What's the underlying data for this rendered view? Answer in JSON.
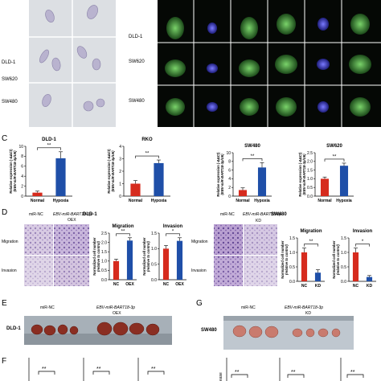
{
  "panel_a": {
    "rows": [
      "DLD-1",
      "SW620",
      "SW480"
    ]
  },
  "panel_b": {
    "rows": [
      "DLD-1",
      "SW620",
      "SW480"
    ]
  },
  "panel_c": {
    "letter": "C",
    "ylabel_line1": "Relative expression (-ΔΔCt)",
    "ylabel_line2": "(EBV-miR-BART18-3p/U6)",
    "sig": "**",
    "charts": [
      {
        "title": "DLD-1",
        "categories": [
          "Normal",
          "Hypoxia"
        ],
        "values": [
          0.7,
          7.6
        ],
        "errors": [
          0.3,
          1.3
        ],
        "ylim": [
          0,
          10
        ],
        "ticks": [
          0,
          2,
          4,
          6,
          8,
          10
        ],
        "colors": [
          "#d62b1e",
          "#1f4fa8"
        ]
      },
      {
        "title": "RKO",
        "categories": [
          "Normal",
          "Hypoxia"
        ],
        "values": [
          1.0,
          2.65
        ],
        "errors": [
          0.25,
          0.25
        ],
        "ylim": [
          0,
          4
        ],
        "ticks": [
          0,
          1,
          2,
          3,
          4
        ],
        "colors": [
          "#d62b1e",
          "#1f4fa8"
        ]
      },
      {
        "title": "SW480",
        "categories": [
          "Normal",
          "Hypoxia"
        ],
        "values": [
          1.4,
          6.6
        ],
        "errors": [
          0.5,
          1.1
        ],
        "ylim": [
          0,
          10
        ],
        "ticks": [
          0,
          2,
          4,
          6,
          8,
          10
        ],
        "colors": [
          "#d62b1e",
          "#1f4fa8"
        ]
      },
      {
        "title": "SW620",
        "categories": [
          "Normal",
          "Hypoxia"
        ],
        "values": [
          1.0,
          1.75
        ],
        "errors": [
          0.1,
          0.15
        ],
        "ylim": [
          0,
          2.5
        ],
        "ticks": [
          0.0,
          0.5,
          1.0,
          1.5,
          2.0,
          2.5
        ],
        "colors": [
          "#d62b1e",
          "#1f4fa8"
        ]
      }
    ]
  },
  "panel_d": {
    "letter": "D",
    "left": {
      "cell_line": "DLD-1",
      "col1": "miR-NC",
      "col2_line1": "EBV-miR-BART18-3p",
      "col2_line2": "OEX",
      "row1": "Migration",
      "row2": "Invasion"
    },
    "right": {
      "cell_line": "SW480",
      "col1": "miR-NC",
      "col2_line1": "EBV-miR-BART18-3p",
      "col2_line2": "KD",
      "row1": "Migration",
      "row2": "Invasion"
    },
    "ylabel_line1": "Normalized cell number",
    "ylabel_line2": "(relative to control)",
    "charts": [
      {
        "title": "Migration",
        "categories": [
          "NC",
          "OEX"
        ],
        "values": [
          1.0,
          2.1
        ],
        "errors": [
          0.1,
          0.15
        ],
        "sig": "**",
        "ylim": [
          0,
          2.5
        ],
        "ticks": [
          0.0,
          0.5,
          1.0,
          1.5,
          2.0,
          2.5
        ],
        "colors": [
          "#d62b1e",
          "#1f4fa8"
        ]
      },
      {
        "title": "Invasion",
        "categories": [
          "NC",
          "OEX"
        ],
        "values": [
          1.0,
          1.25
        ],
        "errors": [
          0.1,
          0.1
        ],
        "sig": "*",
        "ylim": [
          0,
          1.5
        ],
        "ticks": [
          0.0,
          0.5,
          1.0,
          1.5
        ],
        "colors": [
          "#d62b1e",
          "#1f4fa8"
        ]
      },
      {
        "title": "Migration",
        "categories": [
          "NC",
          "KD"
        ],
        "values": [
          1.0,
          0.3
        ],
        "errors": [
          0.15,
          0.1
        ],
        "sig": "**",
        "ylim": [
          0,
          1.5
        ],
        "ticks": [
          0.0,
          0.5,
          1.0,
          1.5
        ],
        "colors": [
          "#d62b1e",
          "#1f4fa8"
        ]
      },
      {
        "title": "Invasion",
        "categories": [
          "NC",
          "KD"
        ],
        "values": [
          1.0,
          0.15
        ],
        "errors": [
          0.15,
          0.05
        ],
        "sig": "*",
        "ylim": [
          0,
          1.5
        ],
        "ticks": [
          0.0,
          0.5,
          1.0,
          1.5
        ],
        "colors": [
          "#d62b1e",
          "#1f4fa8"
        ]
      }
    ]
  },
  "panel_e": {
    "letter": "E",
    "col1": "miR-NC",
    "col2_line1": "EBV-miR-BART18-3p",
    "col2_line2": "OEX",
    "cell_line": "DLD-1"
  },
  "panel_g": {
    "letter": "G",
    "col1": "miR-NC",
    "col2_line1": "EBV-miR-BART18-3p",
    "col2_line2": "KD",
    "cell_line": "SW480"
  },
  "panel_f": {
    "letter": "F",
    "sig": "**",
    "right_label": "ease"
  }
}
